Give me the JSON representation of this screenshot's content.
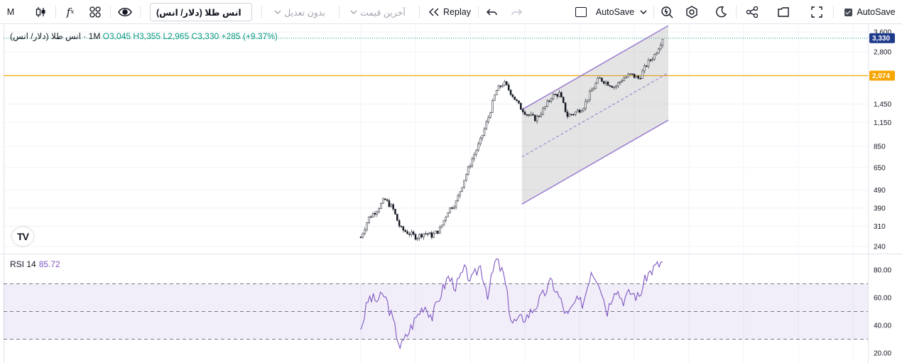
{
  "toolbar": {
    "interval": "M",
    "symbol": "انس طلا (دلار/ انس)",
    "adjust_label": "بدون تعدیل",
    "price_type_label": "آخرین قیمت",
    "replay_label": "Replay",
    "autosave_dropdown_label": "AutoSave",
    "autosave_checkbox_label": "AutoSave"
  },
  "legend": {
    "name": "انس طلا (دلار/ انس)",
    "interval": "1M",
    "open": "O3,045",
    "high": "H3,355",
    "low": "L2,965",
    "close": "C3,330",
    "change": "+285 (+9.37%)"
  },
  "rsi": {
    "label": "RSI 14",
    "value": "85.72"
  },
  "logo": {
    "text": "TV"
  },
  "colors": {
    "up": "#089981",
    "down": "#f23645",
    "rsi": "#7e57c2",
    "hline": "#f7a600",
    "last": "#1e3a8a",
    "channel": "#9575cd"
  },
  "chart_data": [
    {
      "type": "candlestick",
      "scale": "log",
      "y_ticks": [
        "3,600",
        "2,800",
        "1,450",
        "1,150",
        "850",
        "650",
        "490",
        "390",
        "310",
        "240"
      ],
      "last_price": {
        "value": 3330,
        "label": "3,330"
      },
      "horizontal_line": {
        "value": 2074,
        "label": "2,074"
      },
      "series": [
        {
          "name": "",
          "close_path": [
            [
              2001,
              270
            ],
            [
              2002,
              345
            ],
            [
              2003,
              380
            ],
            [
              2004,
              435
            ],
            [
              2005,
              390
            ],
            [
              2006,
              300
            ],
            [
              2007,
              285
            ],
            [
              2008,
              270
            ],
            [
              2009,
              285
            ],
            [
              2010,
              275
            ],
            [
              2011,
              300
            ],
            [
              2012,
              380
            ],
            [
              2013,
              420
            ],
            [
              2014,
              560
            ],
            [
              2015,
              720
            ],
            [
              2016,
              900
            ],
            [
              2017,
              1200
            ],
            [
              2018,
              1700
            ],
            [
              2019,
              1900
            ],
            [
              2020,
              1650
            ],
            [
              2021,
              1400
            ],
            [
              2022,
              1270
            ],
            [
              2023,
              1200
            ],
            [
              2024,
              1350
            ],
            [
              2025,
              1600
            ],
            [
              2026,
              1650
            ],
            [
              2027,
              1250
            ],
            [
              2028,
              1300
            ],
            [
              2029,
              1400
            ],
            [
              2030,
              1700
            ],
            [
              2031,
              2000
            ],
            [
              2032,
              1900
            ],
            [
              2033,
              1800
            ],
            [
              2034,
              2000
            ],
            [
              2035,
              2100
            ],
            [
              2036,
              2000
            ],
            [
              2037,
              2400
            ],
            [
              2038,
              2700
            ],
            [
              2039,
              3330
            ]
          ]
        }
      ],
      "parallel_channel": {
        "start": [
          2022,
          1350
        ],
        "end": [
          2039,
          3900
        ],
        "lower_offset_ratio": 0.72
      }
    },
    {
      "type": "line",
      "name": "RSI 14",
      "y_ticks": [
        "80.00",
        "60.00",
        "40.00",
        "20.00"
      ],
      "ylim": [
        18,
        88
      ],
      "band": [
        30,
        70
      ],
      "midline": 50,
      "points": [
        [
          2001,
          37
        ],
        [
          2002,
          60
        ],
        [
          2003,
          58
        ],
        [
          2004,
          62
        ],
        [
          2005,
          44
        ],
        [
          2006,
          24
        ],
        [
          2007,
          35
        ],
        [
          2008,
          46
        ],
        [
          2009,
          55
        ],
        [
          2010,
          46
        ],
        [
          2011,
          62
        ],
        [
          2012,
          75
        ],
        [
          2013,
          68
        ],
        [
          2014,
          80
        ],
        [
          2015,
          72
        ],
        [
          2016,
          84
        ],
        [
          2017,
          62
        ],
        [
          2018,
          88
        ],
        [
          2019,
          76
        ],
        [
          2020,
          42
        ],
        [
          2021,
          44
        ],
        [
          2022,
          47
        ],
        [
          2023,
          54
        ],
        [
          2024,
          62
        ],
        [
          2025,
          72
        ],
        [
          2026,
          60
        ],
        [
          2027,
          46
        ],
        [
          2028,
          57
        ],
        [
          2029,
          56
        ],
        [
          2030,
          80
        ],
        [
          2031,
          72
        ],
        [
          2032,
          50
        ],
        [
          2033,
          68
        ],
        [
          2034,
          58
        ],
        [
          2035,
          64
        ],
        [
          2036,
          60
        ],
        [
          2037,
          76
        ],
        [
          2038,
          82
        ],
        [
          2039,
          85.72
        ]
      ]
    }
  ]
}
